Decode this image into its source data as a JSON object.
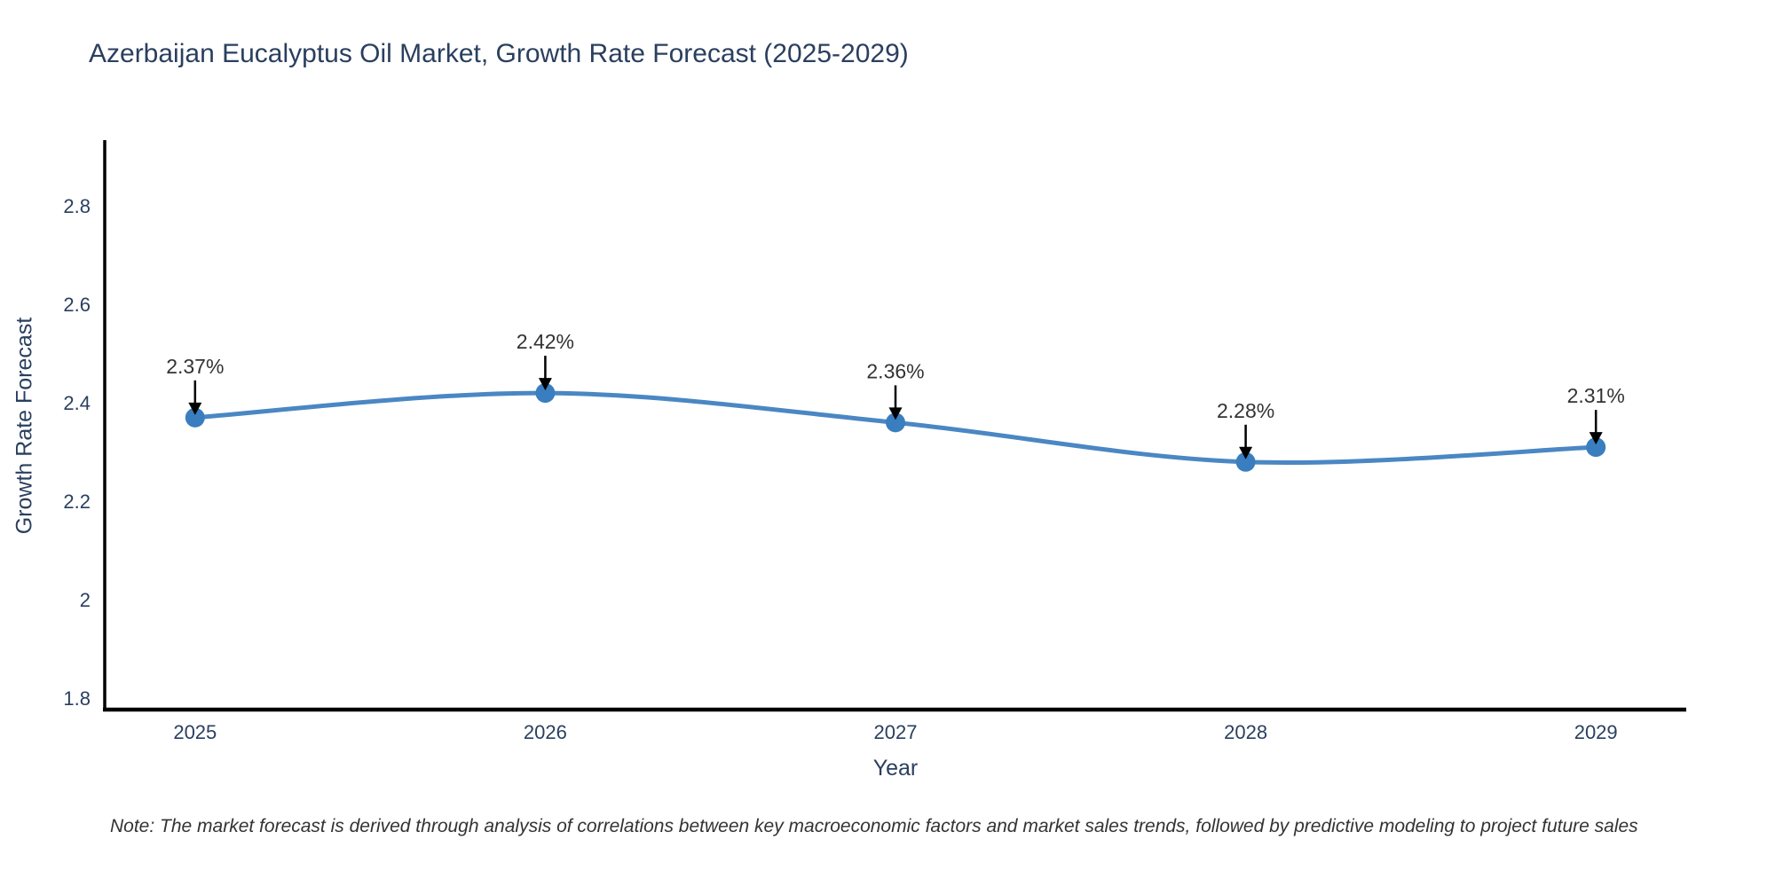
{
  "header": {
    "title": "Azerbaijan Eucalyptus Oil Market, Growth Rate Forecast (2025-2029)"
  },
  "chart_data": {
    "type": "line",
    "title": "Azerbaijan Eucalyptus Oil Market, Growth Rate Forecast (2025-2029)",
    "x": [
      2025,
      2026,
      2027,
      2028,
      2029
    ],
    "values": [
      2.37,
      2.42,
      2.36,
      2.28,
      2.31
    ],
    "point_labels": [
      "2.37%",
      "2.42%",
      "2.36%",
      "2.28%",
      "2.31%"
    ],
    "xlabel": "Year",
    "ylabel": "Growth Rate Forecast",
    "xlim": [
      2024.742,
      2029.258
    ],
    "ylim": [
      1.777,
      2.93
    ],
    "xticks": [
      2025,
      2026,
      2027,
      2028,
      2029
    ],
    "xtick_labels": [
      "2025",
      "2026",
      "2027",
      "2028",
      "2029"
    ],
    "yticks": [
      1.8,
      2.0,
      2.2,
      2.4,
      2.6,
      2.8
    ],
    "ytick_labels": [
      "1.8",
      "2",
      "2.2",
      "2.4",
      "2.6",
      "2.8"
    ],
    "grid": false,
    "line_shape": "spline",
    "legend": "none",
    "colors": {
      "line": "#4a87c3",
      "marker": "#3a7ebf",
      "axis": "#000000",
      "tick_text": "#2a3f5f",
      "annotation_text": "#333333",
      "arrow": "#000000"
    }
  },
  "footer": {
    "note": "Note: The market forecast is derived through analysis of correlations between key macroeconomic factors and market sales trends, followed by predictive modeling to project future sales"
  }
}
